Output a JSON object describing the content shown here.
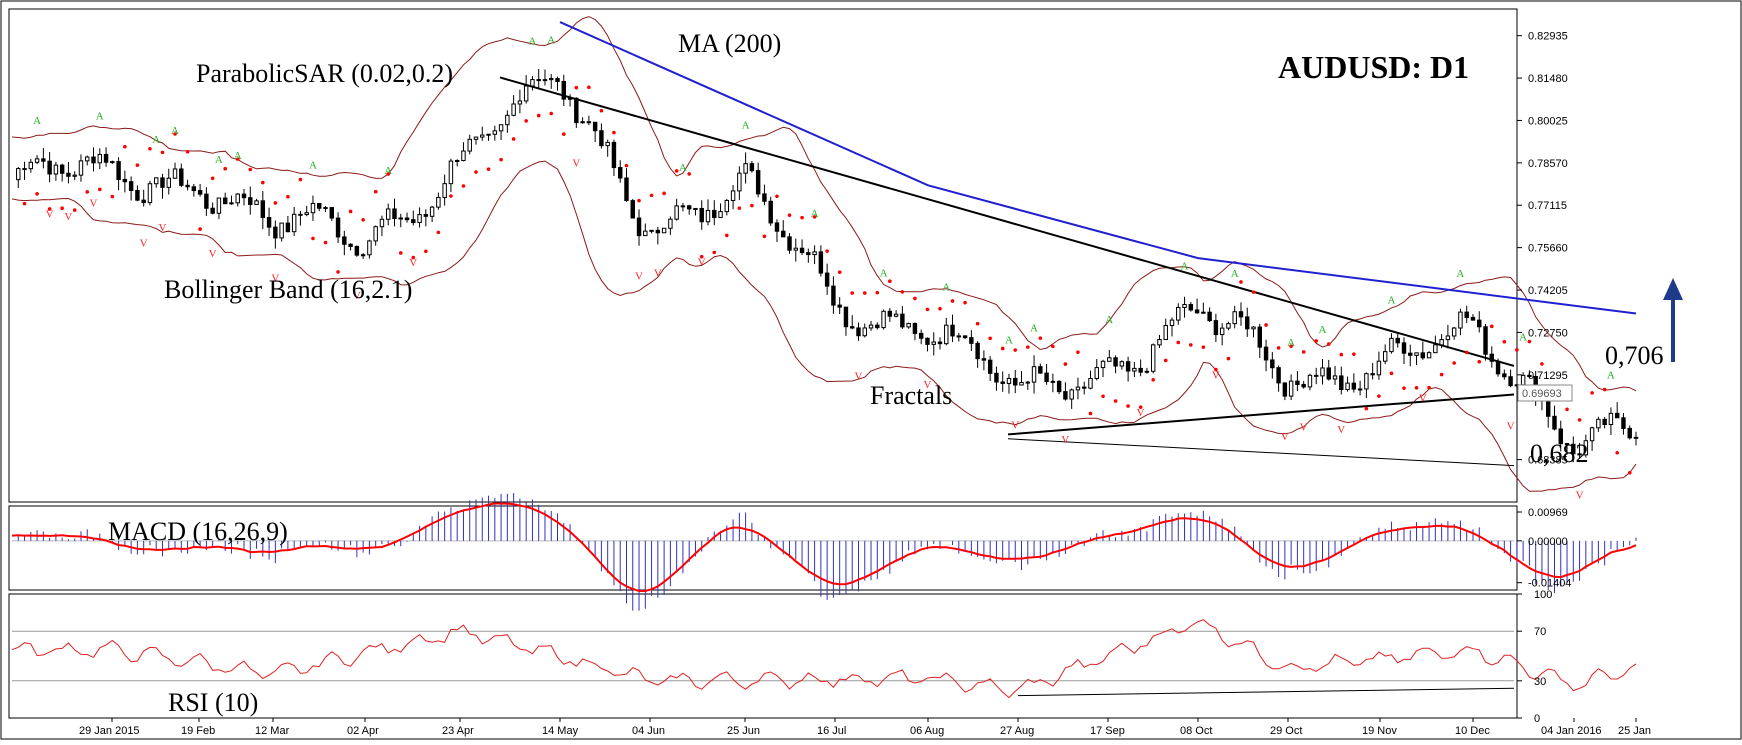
{
  "chart_data": {
    "type": "candlestick",
    "title": "AUDUSD: D1",
    "indicator_labels": {
      "ma": "MA (200)",
      "sar": "ParabolicSAR (0.02,0.2)",
      "bb": "Bollinger Band (16,2.1)",
      "fractals": "Fractals",
      "macd": "MACD (16,26,9)",
      "rsi": "RSI (10)"
    },
    "annotations": {
      "resistance": "0,706",
      "support": "0,682",
      "current_price": "0.69693"
    },
    "price_axis": {
      "ticks": [
        "0.82935",
        "0.81480",
        "0.80025",
        "0.78570",
        "0.77115",
        "0.75660",
        "0.74205",
        "0.72750",
        "0.71295",
        "0.68385"
      ],
      "ylim": [
        0.6693,
        0.8385
      ]
    },
    "macd_axis": {
      "ticks": [
        "0.00969",
        "0.00000",
        "-0.01404"
      ],
      "ylim": [
        -0.0165,
        0.0117
      ]
    },
    "rsi_axis": {
      "ticks": [
        "100",
        "70",
        "30",
        "0"
      ],
      "ylim": [
        0,
        100
      ],
      "levels": [
        70,
        30
      ]
    },
    "x_axis": {
      "ticks": [
        "29 Jan 2015",
        "19 Feb",
        "12 Mar",
        "02 Apr",
        "23 Apr",
        "14 May",
        "04 Jun",
        "25 Jun",
        "16 Jul",
        "06 Aug",
        "27 Aug",
        "17 Sep",
        "08 Oct",
        "29 Oct",
        "19 Nov",
        "10 Dec",
        "04 Jan 2016",
        "25 Jan"
      ]
    },
    "key_points": [
      {
        "x": "29 Jan 2015",
        "close": 0.78
      },
      {
        "x": "19 Feb",
        "close": 0.783
      },
      {
        "x": "12 Mar",
        "close": 0.762
      },
      {
        "x": "02 Apr",
        "close": 0.76
      },
      {
        "x": "23 Apr",
        "close": 0.788
      },
      {
        "x": "14 May",
        "close": 0.811
      },
      {
        "x": "04 Jun",
        "close": 0.768
      },
      {
        "x": "25 Jun",
        "close": 0.774
      },
      {
        "x": "16 Jul",
        "close": 0.74
      },
      {
        "x": "06 Aug",
        "close": 0.731
      },
      {
        "x": "27 Aug",
        "close": 0.703
      },
      {
        "x": "17 Sep",
        "close": 0.718
      },
      {
        "x": "08 Oct",
        "close": 0.732
      },
      {
        "x": "29 Oct",
        "close": 0.712
      },
      {
        "x": "19 Nov",
        "close": 0.72
      },
      {
        "x": "10 Dec",
        "close": 0.723
      },
      {
        "x": "04 Jan 2016",
        "close": 0.696
      },
      {
        "x": "25 Jan",
        "close": 0.6969
      }
    ],
    "ma200": [
      {
        "x": "14 May",
        "y": 0.834
      },
      {
        "x": "06 Aug",
        "y": 0.778
      },
      {
        "x": "08 Oct",
        "y": 0.753
      },
      {
        "x": "25 Jan",
        "y": 0.734
      }
    ],
    "rsi_key": [
      {
        "x": "29 Jan 2015",
        "y": 55
      },
      {
        "x": "12 Mar",
        "y": 35
      },
      {
        "x": "23 Apr",
        "y": 70
      },
      {
        "x": "04 Jun",
        "y": 30
      },
      {
        "x": "06 Aug",
        "y": 32
      },
      {
        "x": "27 Aug",
        "y": 22
      },
      {
        "x": "08 Oct",
        "y": 78
      },
      {
        "x": "29 Oct",
        "y": 40
      },
      {
        "x": "10 Dec",
        "y": 55
      },
      {
        "x": "04 Jan 2016",
        "y": 27
      },
      {
        "x": "25 Jan",
        "y": 40
      }
    ],
    "grid": false,
    "colors": {
      "ma": "#2020d0",
      "bb": "#8b1a1a",
      "sar": "#ff0000",
      "fractal_up": "#22b022",
      "fractal_down": "#ff2020",
      "macd_hist": "#3030c0",
      "macd_signal": "#ff0000",
      "rsi": "#e02020",
      "candle": "#000000",
      "arrow": "#1e3a8a"
    }
  }
}
